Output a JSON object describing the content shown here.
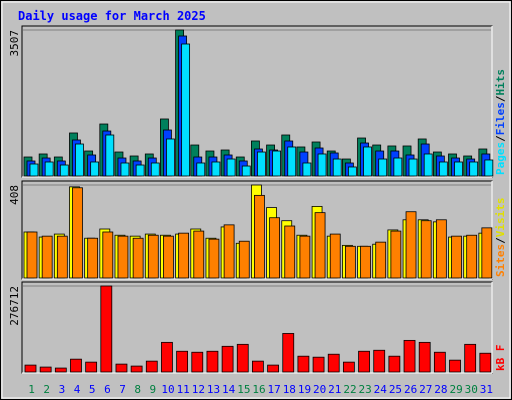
{
  "chart_data": [
    {
      "type": "bar",
      "title": "Daily usage for March 2025",
      "categories": [
        "1",
        "2",
        "3",
        "4",
        "5",
        "6",
        "7",
        "8",
        "9",
        "10",
        "11",
        "12",
        "13",
        "14",
        "15",
        "16",
        "17",
        "18",
        "19",
        "20",
        "21",
        "22",
        "23",
        "24",
        "25",
        "26",
        "27",
        "28",
        "29",
        "30",
        "31"
      ],
      "weekend": [
        0,
        1,
        7,
        8,
        14,
        15,
        21,
        22,
        28,
        29
      ],
      "weekend_color": "#008040",
      "weekday_color": "#0000ff",
      "legend_separator": "/",
      "ylim": [
        0,
        3507
      ],
      "yticks": [
        3507
      ],
      "series": [
        {
          "name": "Hits",
          "color": "#00805c",
          "values": [
            477,
            549,
            477,
            1050,
            620,
            1264,
            596,
            501,
            549,
            1384,
            3507,
            763,
            620,
            644,
            477,
            859,
            763,
            1002,
            716,
            835,
            620,
            429,
            930,
            763,
            740,
            740,
            907,
            596,
            549,
            501,
            668
          ]
        },
        {
          "name": "Files",
          "color": "#0040ff",
          "values": [
            382,
            453,
            382,
            883,
            525,
            1097,
            453,
            382,
            453,
            1121,
            3364,
            477,
            477,
            525,
            382,
            668,
            644,
            859,
            596,
            692,
            573,
            334,
            811,
            620,
            620,
            525,
            787,
            501,
            453,
            429,
            549
          ]
        },
        {
          "name": "Pages",
          "color": "#00e0ff",
          "values": [
            310,
            358,
            286,
            787,
            358,
            1002,
            334,
            286,
            334,
            907,
            3173,
            334,
            358,
            429,
            262,
            596,
            620,
            716,
            334,
            549,
            429,
            239,
            716,
            429,
            453,
            429,
            549,
            358,
            358,
            358,
            406
          ]
        }
      ]
    },
    {
      "type": "bar",
      "legend_separator": "/",
      "ylim": [
        0,
        408
      ],
      "yticks": [
        408
      ],
      "series": [
        {
          "name": "Visits",
          "color": "#ffff00",
          "values": [
            204,
            182,
            195,
            400,
            177,
            217,
            190,
            186,
            195,
            190,
            195,
            217,
            177,
            226,
            155,
            408,
            310,
            253,
            190,
            315,
            186,
            146,
            142,
            151,
            213,
            257,
            257,
            248,
            182,
            186,
            199
          ]
        },
        {
          "name": "Sites",
          "color": "#ff8000",
          "values": [
            204,
            186,
            186,
            396,
            177,
            204,
            186,
            177,
            190,
            186,
            199,
            208,
            173,
            235,
            164,
            363,
            266,
            230,
            186,
            288,
            195,
            142,
            142,
            160,
            208,
            292,
            253,
            257,
            186,
            190,
            222
          ]
        }
      ]
    },
    {
      "type": "bar",
      "ylim": [
        0,
        276712
      ],
      "yticks": [
        276712
      ],
      "series": [
        {
          "name": "kB F",
          "color": "#ff0000",
          "values": [
            25152,
            18864,
            15720,
            44016,
            34584,
            276712,
            28296,
            22008,
            37728,
            97464,
            69168,
            66024,
            69168,
            84888,
            91176,
            37728,
            25152,
            125760,
            53448,
            50304,
            59736,
            34584,
            69168,
            72312,
            53448,
            103752,
            97464,
            66024,
            40872,
            91176,
            62880
          ]
        }
      ]
    }
  ]
}
